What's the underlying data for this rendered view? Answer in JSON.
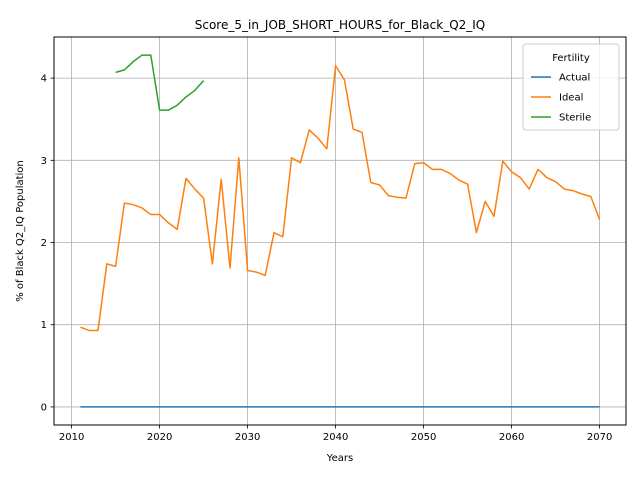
{
  "chart_data": {
    "type": "line",
    "title": "Score_5_in_JOB_SHORT_HOURS_for_Black_Q2_IQ",
    "xlabel": "Years",
    "ylabel": "% of Black Q2_IQ Population",
    "xlim": [
      2008,
      2073
    ],
    "ylim": [
      -0.22,
      4.5
    ],
    "xticks": [
      2010,
      2020,
      2030,
      2040,
      2050,
      2060,
      2070
    ],
    "yticks": [
      0,
      1,
      2,
      3,
      4
    ],
    "grid": true,
    "legend": {
      "title": "Fertility",
      "placement": "top-right"
    },
    "series": [
      {
        "name": "Actual",
        "color": "#1f77b4",
        "x": [
          2011,
          2070
        ],
        "y": [
          0,
          0
        ]
      },
      {
        "name": "Ideal",
        "color": "#ff7f0e",
        "x": [
          2011,
          2012,
          2013,
          2014,
          2015,
          2016,
          2017,
          2018,
          2019,
          2020,
          2021,
          2022,
          2023,
          2024,
          2025,
          2026,
          2027,
          2028,
          2029,
          2030,
          2031,
          2032,
          2033,
          2034,
          2035,
          2036,
          2037,
          2038,
          2039,
          2040,
          2041,
          2042,
          2043,
          2044,
          2045,
          2046,
          2047,
          2048,
          2049,
          2050,
          2051,
          2052,
          2053,
          2054,
          2055,
          2056,
          2057,
          2058,
          2059,
          2060,
          2061,
          2062,
          2063,
          2064,
          2065,
          2066,
          2067,
          2068,
          2069,
          2070
        ],
        "y": [
          0.97,
          0.93,
          0.93,
          1.74,
          1.71,
          2.48,
          2.46,
          2.42,
          2.34,
          2.34,
          2.24,
          2.16,
          2.78,
          2.65,
          2.54,
          1.74,
          2.77,
          1.69,
          3.03,
          1.66,
          1.64,
          1.6,
          2.12,
          2.07,
          3.03,
          2.97,
          3.37,
          3.27,
          3.14,
          4.15,
          3.98,
          3.38,
          3.34,
          2.73,
          2.7,
          2.57,
          2.55,
          2.54,
          2.96,
          2.97,
          2.89,
          2.89,
          2.84,
          2.76,
          2.71,
          2.12,
          2.5,
          2.32,
          2.99,
          2.86,
          2.79,
          2.65,
          2.89,
          2.79,
          2.74,
          2.65,
          2.63,
          2.59,
          2.56,
          2.28
        ]
      },
      {
        "name": "Sterile",
        "color": "#2ca02c",
        "x": [
          2015,
          2016,
          2017,
          2018,
          2019,
          2020,
          2021,
          2022,
          2023,
          2024,
          2025
        ],
        "y": [
          4.07,
          4.1,
          4.2,
          4.28,
          4.28,
          3.61,
          3.61,
          3.67,
          3.77,
          3.85,
          3.97
        ]
      }
    ]
  }
}
